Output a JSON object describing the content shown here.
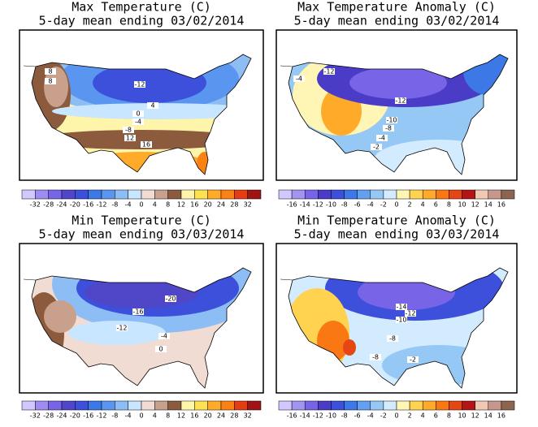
{
  "panels": [
    {
      "title": "Max Temperature (C)",
      "subtitle": "5-day mean ending 03/02/2014",
      "contour_labels": [
        8,
        8,
        -12,
        4,
        0,
        -4,
        -8,
        12,
        16
      ],
      "colorbar": {
        "labels": [
          -32,
          -28,
          -24,
          -20,
          -16,
          -12,
          -8,
          -4,
          0,
          4,
          8,
          12,
          16,
          20,
          24,
          28,
          32
        ],
        "colors": [
          "#d2c8ff",
          "#a08cf0",
          "#7864e6",
          "#5046c8",
          "#3c50dc",
          "#3c78e6",
          "#5a96f0",
          "#8cbef5",
          "#c8e6ff",
          "#f0dcd2",
          "#c8a08c",
          "#8c5a3c",
          "#fff5aa",
          "#ffe150",
          "#ffaa28",
          "#fa8214",
          "#e63c14",
          "#a01414"
        ]
      }
    },
    {
      "title": "Max Temperature Anomaly (C)",
      "subtitle": "5-day mean ending 03/02/2014",
      "contour_labels": [
        -12,
        -4,
        -12,
        -10,
        -8,
        -4,
        -2
      ],
      "colorbar": {
        "labels": [
          -16,
          -14,
          -12,
          -10,
          -8,
          -6,
          -4,
          -2,
          0,
          2,
          4,
          6,
          8,
          10,
          12,
          14,
          16
        ],
        "colors": [
          "#d2c8ff",
          "#a096f0",
          "#7864e6",
          "#4b3cc8",
          "#3c50dc",
          "#3c78e6",
          "#64a0f0",
          "#96c8f5",
          "#d2ebff",
          "#fff5b4",
          "#ffd250",
          "#ffaa28",
          "#fa7814",
          "#e64614",
          "#b41414",
          "#f0c8b4",
          "#c8968c",
          "#8c6450"
        ]
      }
    },
    {
      "title": "Min Temperature (C)",
      "subtitle": "5-day mean ending 03/03/2014",
      "contour_labels": [
        -20,
        -16,
        -12,
        -4,
        0
      ],
      "colorbar": {
        "labels": [
          -32,
          -28,
          -24,
          -20,
          -16,
          -12,
          -8,
          -4,
          0,
          4,
          8,
          12,
          16,
          20,
          24,
          28,
          32
        ],
        "colors": [
          "#d2c8ff",
          "#a08cf0",
          "#7864e6",
          "#5046c8",
          "#3c50dc",
          "#3c78e6",
          "#5a96f0",
          "#8cbef5",
          "#c8e6ff",
          "#f0dcd2",
          "#c8a08c",
          "#8c5a3c",
          "#fff5aa",
          "#ffe150",
          "#ffaa28",
          "#fa8214",
          "#e63c14",
          "#a01414"
        ]
      }
    },
    {
      "title": "Min Temperature Anomaly (C)",
      "subtitle": "5-day mean ending 03/03/2014",
      "contour_labels": [
        -14,
        -12,
        -10,
        -8,
        -8,
        -2
      ],
      "colorbar": {
        "labels": [
          -16,
          -14,
          -12,
          -10,
          -8,
          -6,
          -4,
          -2,
          0,
          2,
          4,
          6,
          8,
          10,
          12,
          14,
          16
        ],
        "colors": [
          "#d2c8ff",
          "#a096f0",
          "#7864e6",
          "#4b3cc8",
          "#3c50dc",
          "#3c78e6",
          "#64a0f0",
          "#96c8f5",
          "#d2ebff",
          "#fff5b4",
          "#ffd250",
          "#ffaa28",
          "#fa7814",
          "#e64614",
          "#b41414",
          "#f0c8b4",
          "#c8968c",
          "#8c6450"
        ]
      }
    }
  ]
}
